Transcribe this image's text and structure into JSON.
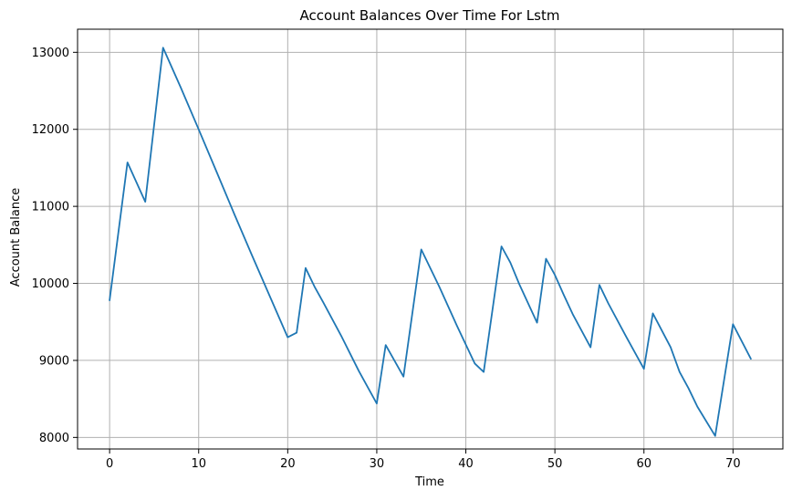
{
  "chart_data": {
    "type": "line",
    "title": "Account Balances Over Time For Lstm",
    "xlabel": "Time",
    "ylabel": "Account Balance",
    "xlim": [
      -3.6,
      75.6
    ],
    "ylim": [
      7850,
      13300
    ],
    "xticks": [
      0,
      10,
      20,
      30,
      40,
      50,
      60,
      70
    ],
    "yticks": [
      8000,
      9000,
      10000,
      11000,
      12000,
      13000
    ],
    "grid": true,
    "colors": {
      "line": "#1f77b4",
      "grid": "#b0b0b0",
      "axis": "#000000"
    },
    "series": [
      {
        "x": [
          0,
          2,
          4,
          6,
          8,
          10,
          12,
          14,
          16,
          18,
          20,
          21,
          22,
          23,
          24,
          26,
          28,
          30,
          31,
          33,
          35,
          37,
          39,
          41,
          42,
          44,
          45,
          46,
          48,
          49,
          50,
          51,
          52,
          54,
          55,
          56,
          58,
          60,
          61,
          63,
          64,
          65,
          66,
          68,
          70,
          72
        ],
        "y": [
          9780,
          11570,
          11060,
          13060,
          12540,
          12000,
          11450,
          10900,
          10360,
          9830,
          9300,
          9360,
          10200,
          9960,
          9750,
          9320,
          8860,
          8440,
          9200,
          8790,
          10440,
          9960,
          9450,
          8960,
          8850,
          10480,
          10270,
          9990,
          9490,
          10320,
          10110,
          9850,
          9600,
          9170,
          9980,
          9740,
          9310,
          8890,
          9610,
          9170,
          8850,
          8640,
          8400,
          8020,
          9470,
          9020
        ]
      }
    ]
  }
}
